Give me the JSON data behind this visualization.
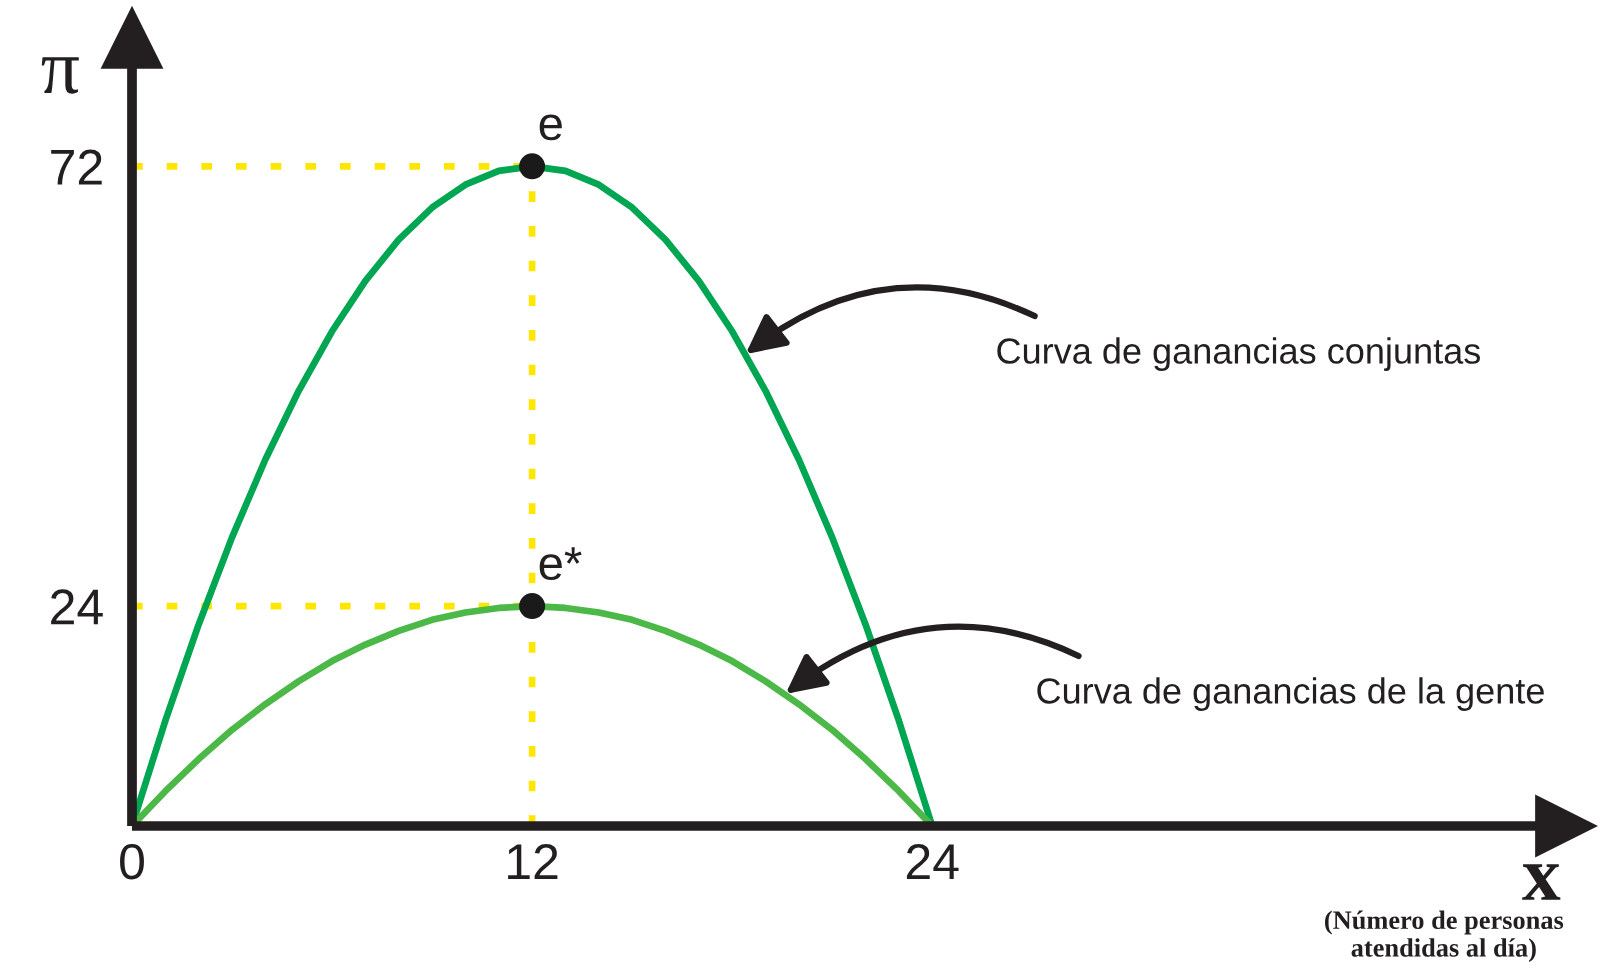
{
  "chart_data": {
    "type": "line",
    "xlabel": "x",
    "ylabel": "π",
    "x": [
      0,
      1,
      2,
      3,
      4,
      5,
      6,
      7,
      8,
      9,
      10,
      11,
      12,
      13,
      14,
      15,
      16,
      17,
      18,
      19,
      20,
      21,
      22,
      23,
      24
    ],
    "series": [
      {
        "color": "#00a651",
        "values": [
          0,
          11.5,
          22,
          31.5,
          40,
          47.5,
          54,
          59.5,
          64,
          67.5,
          70,
          71.5,
          72,
          71.5,
          70,
          67.5,
          64,
          59.5,
          54,
          47.5,
          40,
          31.5,
          22,
          11.5,
          0
        ]
      },
      {
        "color": "#4cb848",
        "values": [
          0,
          3.8,
          7.3,
          10.5,
          13.3,
          15.8,
          18,
          19.8,
          21.3,
          22.5,
          23.3,
          23.8,
          24,
          23.8,
          23.3,
          22.5,
          21.3,
          19.8,
          18,
          15.8,
          13.3,
          10.5,
          7.3,
          3.8,
          0
        ]
      },
      {
        "type": "scatter",
        "color": "#1a1a1a",
        "marker": "circle",
        "x": [
          12,
          12
        ],
        "values": [
          72,
          24
        ]
      }
    ],
    "xlim": [
      0,
      43
    ],
    "ylim": [
      0,
      86
    ],
    "xticks": [
      0,
      12,
      24
    ],
    "yticks": [
      24,
      72
    ],
    "ref_lines": [
      {
        "axis": "y",
        "value": 72,
        "color": "#ffe600",
        "line_style": "dotted"
      },
      {
        "axis": "y",
        "value": 24,
        "color": "#ffe600",
        "line_style": "dotted"
      },
      {
        "axis": "x",
        "value": 12,
        "color": "#ffe600",
        "line_style": "dotted"
      }
    ],
    "annotations": [
      "(Número de personas\natendidas al día)",
      {
        "text": "e",
        "x": 12,
        "y": 72
      },
      {
        "text": "e*",
        "x": 12,
        "y": 24
      },
      {
        "text": "Curva de ganancias conjuntas",
        "x": 18.4,
        "y": 51.5
      },
      {
        "text": "Curva de ganancias de la gente",
        "x": 19.6,
        "y": 14.4
      }
    ],
    "line_style": "solid"
  }
}
